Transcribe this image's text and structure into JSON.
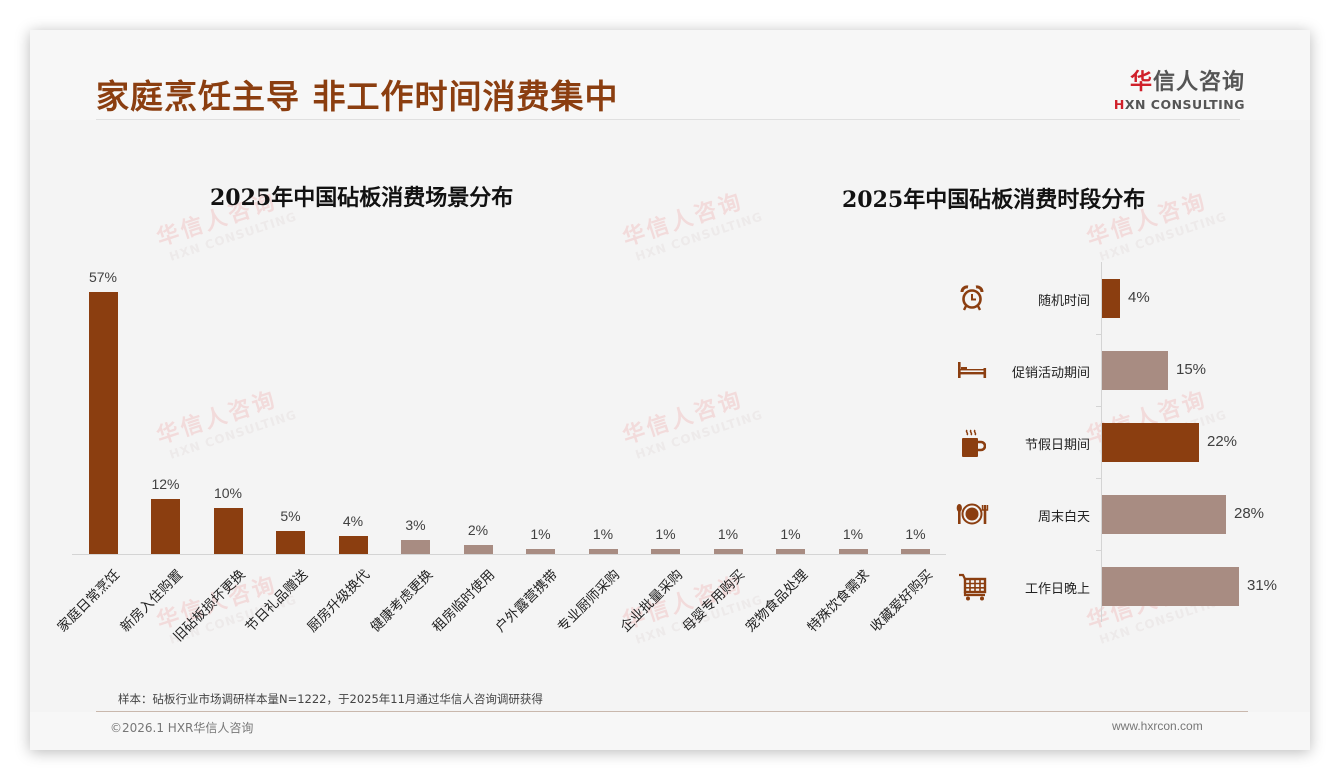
{
  "header": {
    "title": "家庭烹饪主导 非工作时间消费集中",
    "logo": {
      "accent_char": "华",
      "cn_rest": "信人咨询",
      "en_accent": "H",
      "en_rest": "XN CONSULTING"
    }
  },
  "watermark": {
    "cn_accent": "华",
    "cn_rest": "信人咨询",
    "en": "HXN CONSULTING"
  },
  "colors": {
    "primary": "#8b3e10",
    "secondary": "#a88c82",
    "title": "#8b3e10",
    "logo_accent": "#d0202a"
  },
  "chart_data": [
    {
      "type": "bar",
      "title": "2025年中国砧板消费场景分布",
      "categories": [
        "家庭日常烹饪",
        "新房入住购置",
        "旧砧板损坏更换",
        "节日礼品赠送",
        "厨房升级换代",
        "健康考虑更换",
        "租房临时使用",
        "户外露营携带",
        "专业厨师采购",
        "企业批量采购",
        "母婴专用购买",
        "宠物食品处理",
        "特殊饮食需求",
        "收藏爱好购买"
      ],
      "values": [
        57,
        12,
        10,
        5,
        4,
        3,
        2,
        1,
        1,
        1,
        1,
        1,
        1,
        1
      ],
      "value_labels": [
        "57%",
        "12%",
        "10%",
        "5%",
        "4%",
        "3%",
        "2%",
        "1%",
        "1%",
        "1%",
        "1%",
        "1%",
        "1%",
        "1%"
      ],
      "bar_colors": [
        "#8b3e10",
        "#8b3e10",
        "#8b3e10",
        "#8b3e10",
        "#8b3e10",
        "#a88c82",
        "#a88c82",
        "#a88c82",
        "#a88c82",
        "#a88c82",
        "#a88c82",
        "#a88c82",
        "#a88c82",
        "#a88c82"
      ],
      "xlabel": "",
      "ylabel": "",
      "ylim": [
        0,
        60
      ],
      "grid": false,
      "legend": "none",
      "unit": "%"
    },
    {
      "type": "bar",
      "orientation": "horizontal",
      "title": "2025年中国砧板消费时段分布",
      "categories": [
        "随机时间",
        "促销活动期间",
        "节假日期间",
        "周末白天",
        "工作日晚上"
      ],
      "values": [
        4,
        15,
        22,
        28,
        31
      ],
      "value_labels": [
        "4%",
        "15%",
        "22%",
        "28%",
        "31%"
      ],
      "icons": [
        "alarm-clock-icon",
        "bed-icon",
        "hot-mug-icon",
        "plate-cutlery-icon",
        "shopping-cart-icon"
      ],
      "bar_colors": [
        "#8b3e10",
        "#a88c82",
        "#8b3e10",
        "#a88c82",
        "#a88c82"
      ],
      "xlabel": "",
      "ylabel": "",
      "xlim": [
        0,
        35
      ],
      "grid": false,
      "legend": "none",
      "unit": "%"
    }
  ],
  "footer": {
    "note": "样本：砧板行业市场调研样本量N=1222，于2025年11月通过华信人咨询调研获得",
    "copyright": "©2026.1 HXR华信人咨询",
    "website": "www.hxrcon.com"
  }
}
